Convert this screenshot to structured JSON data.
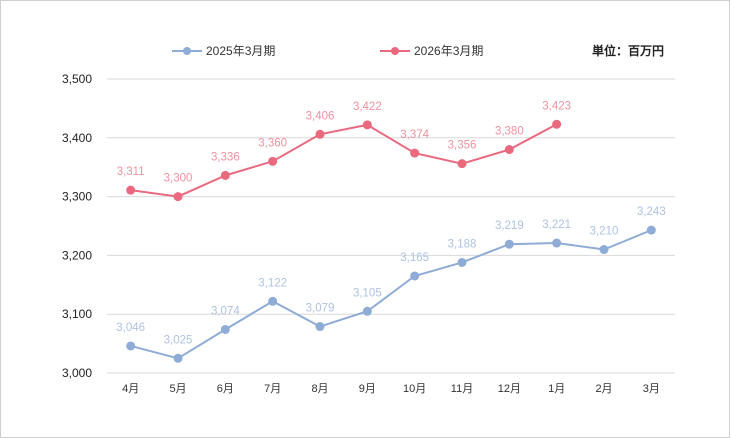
{
  "chart_data": {
    "type": "line",
    "title": "",
    "unit_label": "単位：百万円",
    "categories": [
      "4月",
      "5月",
      "6月",
      "7月",
      "8月",
      "9月",
      "10月",
      "11月",
      "12月",
      "1月",
      "2月",
      "3月"
    ],
    "ylim": [
      3000,
      3500
    ],
    "yticks": [
      3000,
      3100,
      3200,
      3300,
      3400,
      3500
    ],
    "ytick_labels": [
      "3,000",
      "3,100",
      "3,200",
      "3,300",
      "3,400",
      "3,500"
    ],
    "grid": true,
    "legend_position": "top",
    "series": [
      {
        "name": "2025年3月期",
        "color": "#8eacd6",
        "label_color": "#aec3e3",
        "values": [
          3046,
          3025,
          3074,
          3122,
          3079,
          3105,
          3165,
          3188,
          3219,
          3221,
          3210,
          3243
        ],
        "labels": [
          "3,046",
          "3,025",
          "3,074",
          "3,122",
          "3,079",
          "3,105",
          "3,165",
          "3,188",
          "3,219",
          "3,221",
          "3,210",
          "3,243"
        ]
      },
      {
        "name": "2026年3月期",
        "color": "#e9697f",
        "label_color": "#f0919f",
        "values": [
          3311,
          3300,
          3336,
          3360,
          3406,
          3422,
          3374,
          3356,
          3380,
          3423,
          null,
          null
        ],
        "labels": [
          "3,311",
          "3,300",
          "3,336",
          "3,360",
          "3,406",
          "3,422",
          "3,374",
          "3,356",
          "3,380",
          "3,423",
          null,
          null
        ]
      }
    ]
  }
}
